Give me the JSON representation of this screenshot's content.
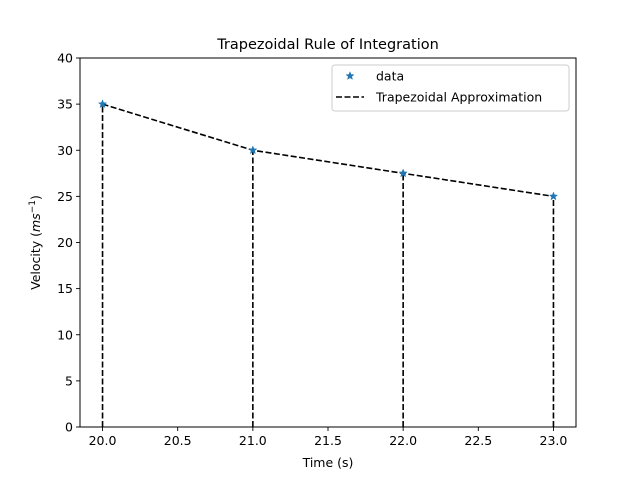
{
  "chart_data": {
    "type": "line",
    "title": "Trapezoidal Rule of Integration",
    "xlabel": "Time (s)",
    "ylabel_prefix": "Velocity (",
    "ylabel_math": "ms",
    "ylabel_sup": "−1",
    "ylabel_suffix": ")",
    "xlim": [
      19.85,
      23.15
    ],
    "ylim": [
      0,
      40
    ],
    "xticks": [
      20.0,
      20.5,
      21.0,
      21.5,
      22.0,
      22.5,
      23.0
    ],
    "xtick_labels": [
      "20.0",
      "20.5",
      "21.0",
      "21.5",
      "22.0",
      "22.5",
      "23.0"
    ],
    "yticks": [
      0,
      5,
      10,
      15,
      20,
      25,
      30,
      35,
      40
    ],
    "ytick_labels": [
      "0",
      "5",
      "10",
      "15",
      "20",
      "25",
      "30",
      "35",
      "40"
    ],
    "grid": false,
    "legend_position": "top-right",
    "series": [
      {
        "name": "data",
        "style": "marker-star",
        "color": "#1f77b4",
        "x": [
          20,
          21,
          22,
          23
        ],
        "y": [
          35,
          30,
          27.5,
          25
        ]
      },
      {
        "name": "Trapezoidal Approximation",
        "style": "dashed",
        "color": "#000000",
        "x": [
          20,
          21,
          22,
          23
        ],
        "y": [
          35,
          30,
          27.5,
          25
        ]
      }
    ]
  }
}
